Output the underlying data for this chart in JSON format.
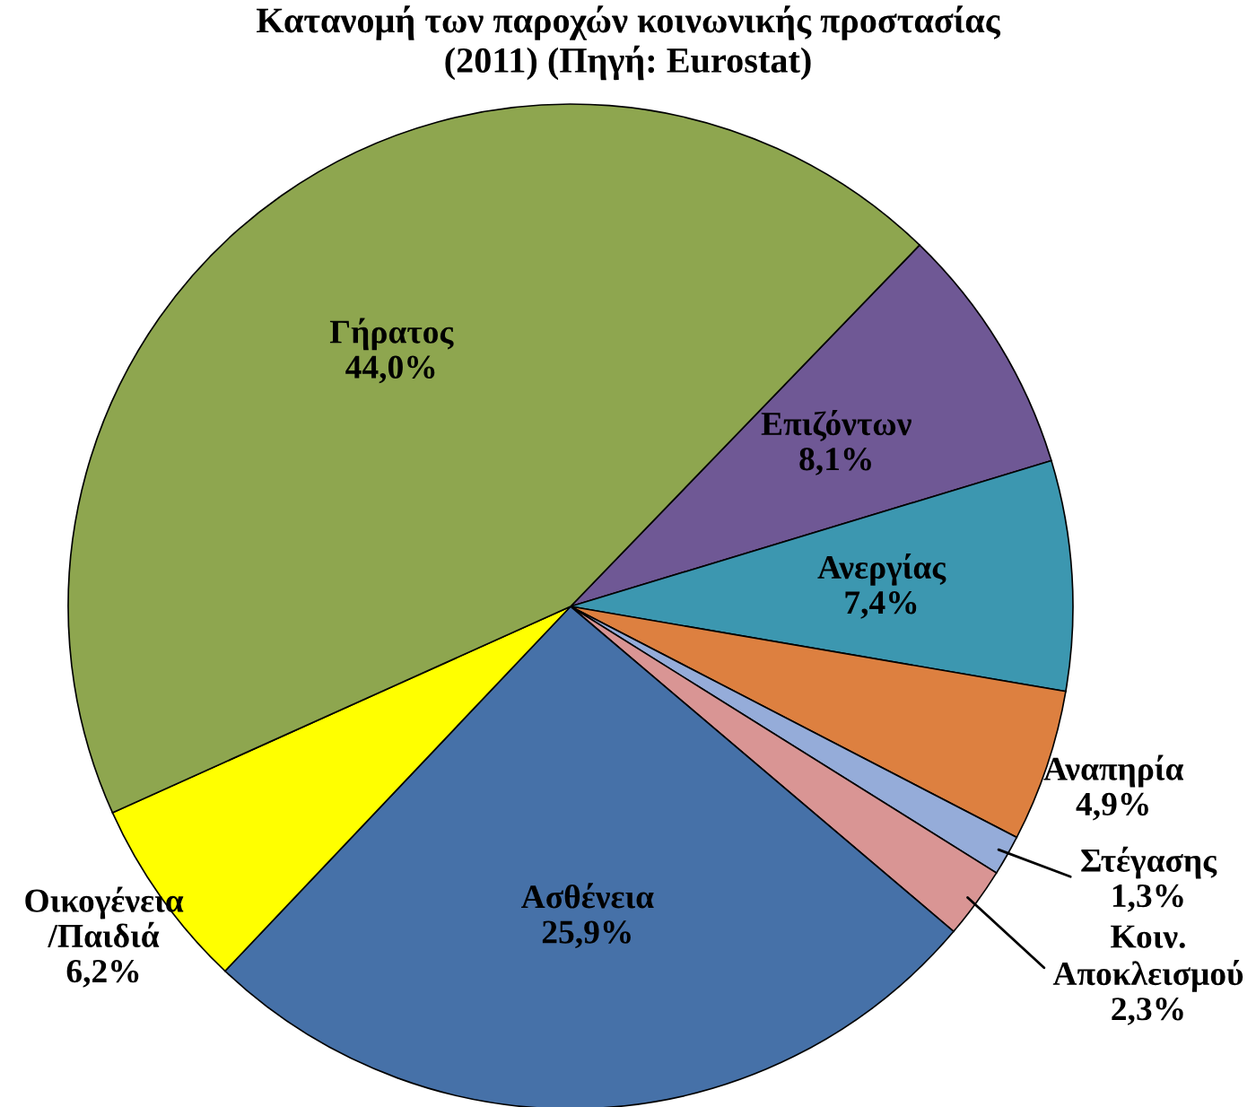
{
  "chart_data": {
    "type": "pie",
    "title": "Κατανομή των παροχών κοινωνικής προστασίας\n(2011) (Πηγή: Eurostat)",
    "categories": [
      "Επιζόντων",
      "Ανεργίας",
      "Αναπηρία",
      "Στέγασης",
      "Κοιν. Αποκλεισμού",
      "Ασθένεια",
      "Οικογένεια /Παιδιά",
      "Γήρατος"
    ],
    "values": [
      8.1,
      7.4,
      4.9,
      1.3,
      2.3,
      25.9,
      6.2,
      44.0
    ],
    "value_labels": [
      "8,1%",
      "7,4%",
      "4,9%",
      "1,3%",
      "2,3%",
      "25,9%",
      "6,2%",
      "44,0%"
    ],
    "colors": [
      "#6f5895",
      "#3c97b0",
      "#dd8040",
      "#95acd9",
      "#d99594",
      "#4671a8",
      "#ffff00",
      "#8ea64f"
    ]
  }
}
